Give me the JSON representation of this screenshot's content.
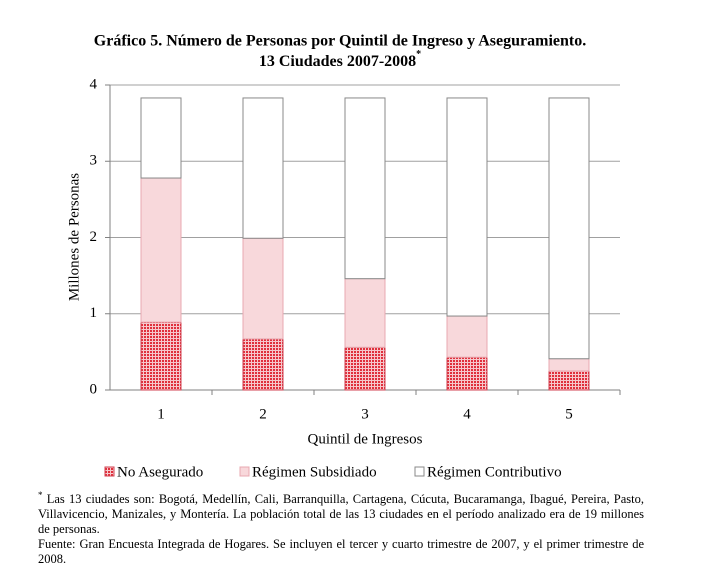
{
  "chart_data": {
    "type": "stacked_bar",
    "title": [
      "Gráfico 5. Número de Personas por Quintil de Ingreso y Aseguramiento.",
      "13 Ciudades 2007-2008"
    ],
    "title_note": "*",
    "x_label": "Quintil de Ingresos",
    "y_label": "Millones de Personas",
    "categories": [
      "1",
      "2",
      "3",
      "4",
      "5"
    ],
    "series": [
      {
        "name": "No Asegurado",
        "color": "#e0303c",
        "values": [
          0.89,
          0.67,
          0.56,
          0.43,
          0.25
        ]
      },
      {
        "name": "Régimen Subsidiado",
        "color": "#f8d8db",
        "values": [
          1.89,
          1.32,
          0.9,
          0.54,
          0.16
        ]
      },
      {
        "name": "Régimen Contributivo",
        "color": "#ffffff",
        "values": [
          1.05,
          1.84,
          2.37,
          2.86,
          3.42
        ]
      }
    ],
    "ylim": [
      0,
      4
    ],
    "yticks": [
      0,
      1,
      2,
      3,
      4
    ],
    "grid": true,
    "notes": [
      {
        "mark": "*",
        "text": "Las 13 ciudades son: Bogotá, Medellín, Cali, Barranquilla, Cartagena, Cúcuta, Bucaramanga, Ibagué, Pereira, Pasto, Villavicencio, Manizales, y Montería. La población total de las 13 ciudades en el período analizado era de 19 millones de personas."
      },
      {
        "text": "Fuente: Gran Encuesta Integrada de Hogares. Se incluyen el tercer y cuarto trimestre de 2007, y el primer trimestre de 2008."
      }
    ]
  }
}
